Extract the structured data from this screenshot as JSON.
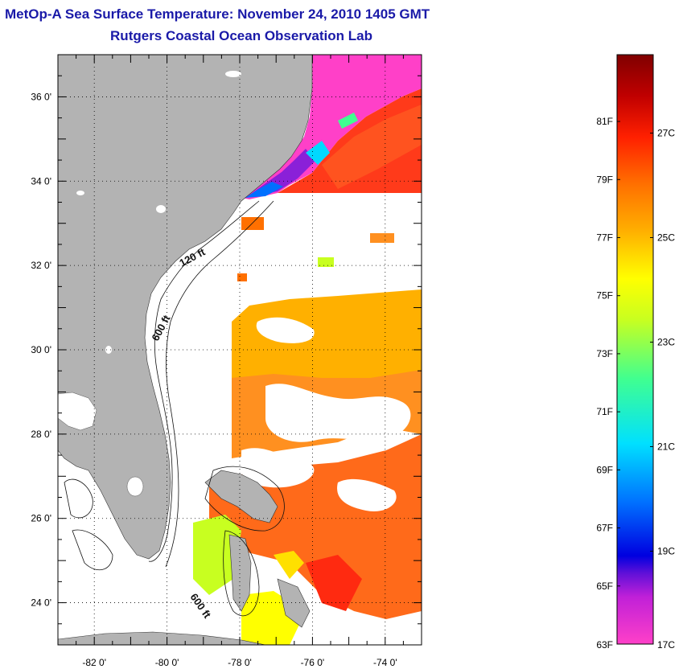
{
  "header": {
    "title": "MetOp-A Sea Surface Temperature:  November 24, 2010 1405 GMT",
    "subtitle": "Rutgers Coastal Ocean Observation Lab"
  },
  "map": {
    "lon_range": [
      -83,
      -73
    ],
    "lat_range": [
      23,
      37
    ],
    "lat_ticks": [
      {
        "value": 36,
        "label": "36 0'"
      },
      {
        "value": 34,
        "label": "34 0'"
      },
      {
        "value": 32,
        "label": "32 0'"
      },
      {
        "value": 30,
        "label": "30 0'"
      },
      {
        "value": 28,
        "label": "28 0'"
      },
      {
        "value": 26,
        "label": "26 0'"
      },
      {
        "value": 24,
        "label": "24 0'"
      }
    ],
    "lon_ticks": [
      {
        "value": -82,
        "label": "-82 0'"
      },
      {
        "value": -80,
        "label": "-80 0'"
      },
      {
        "value": -78,
        "label": "-78 0'"
      },
      {
        "value": -76,
        "label": "-76 0'"
      },
      {
        "value": -74,
        "label": "-74 0'"
      }
    ],
    "contour_labels": [
      "120 ft",
      "600 ft",
      "600 ft"
    ],
    "land_color": "#b3b3b3",
    "grid": "dotted"
  },
  "colorbar": {
    "fahrenheit_labels": [
      "81F",
      "79F",
      "77F",
      "75F",
      "73F",
      "71F",
      "69F",
      "67F",
      "65F",
      "63F"
    ],
    "celsius_labels": [
      "27C",
      "25C",
      "23C",
      "21C",
      "19C",
      "17C"
    ],
    "colors": [
      "#ff40c8",
      "#8a20d8",
      "#0000e0",
      "#0070ff",
      "#00d8ff",
      "#40ff90",
      "#c8ff20",
      "#ffff00",
      "#ffb000",
      "#ff7000",
      "#ff2000",
      "#c00000",
      "#800000"
    ]
  }
}
